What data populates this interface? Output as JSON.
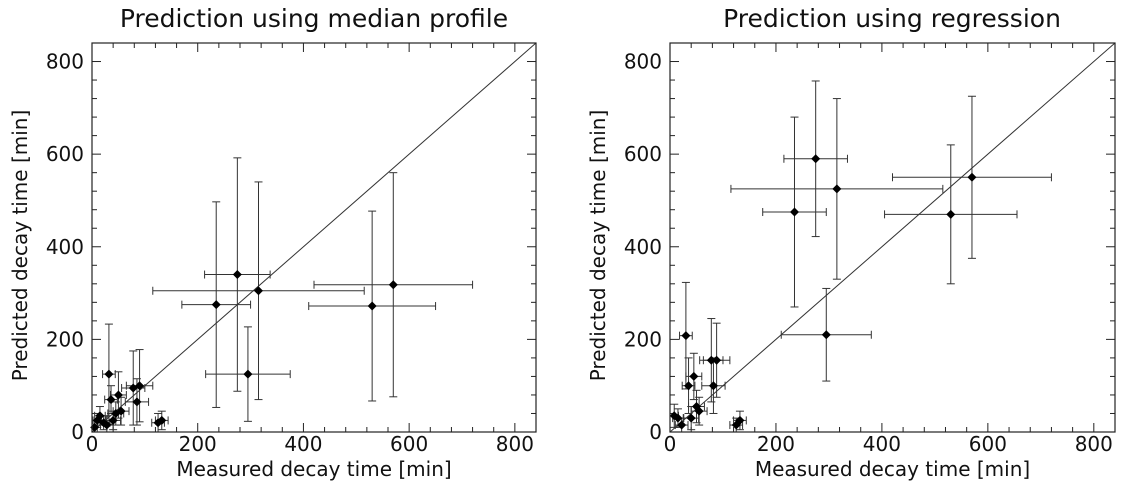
{
  "chart_data": [
    {
      "type": "scatter",
      "title": "Prediction using median profile",
      "xlabel": "Measured decay time [min]",
      "ylabel": "Predicted decay time [min]",
      "xlim": [
        0,
        840
      ],
      "ylim": [
        0,
        840
      ],
      "xticks": [
        "0",
        "200",
        "400",
        "600",
        "800"
      ],
      "yticks": [
        "0",
        "200",
        "400",
        "600",
        "800"
      ],
      "grid": false,
      "reference_line": "y = x",
      "points": [
        {
          "x": 5,
          "y": 10,
          "xerr": 5,
          "yerr": 15
        },
        {
          "x": 10,
          "y": 25,
          "xerr": 8,
          "yerr": 15
        },
        {
          "x": 15,
          "y": 35,
          "xerr": 10,
          "yerr": 20
        },
        {
          "x": 22,
          "y": 20,
          "xerr": 12,
          "yerr": 15
        },
        {
          "x": 28,
          "y": 15,
          "xerr": 12,
          "yerr": 20
        },
        {
          "x": 32,
          "y": 125,
          "xerr": 12,
          "yerr": 108
        },
        {
          "x": 36,
          "y": 70,
          "xerr": 12,
          "yerr": 30
        },
        {
          "x": 40,
          "y": 25,
          "xerr": 14,
          "yerr": 20
        },
        {
          "x": 45,
          "y": 40,
          "xerr": 15,
          "yerr": 25
        },
        {
          "x": 50,
          "y": 80,
          "xerr": 15,
          "yerr": 50
        },
        {
          "x": 55,
          "y": 45,
          "xerr": 15,
          "yerr": 30
        },
        {
          "x": 78,
          "y": 95,
          "xerr": 22,
          "yerr": 80
        },
        {
          "x": 85,
          "y": 65,
          "xerr": 22,
          "yerr": 50
        },
        {
          "x": 90,
          "y": 100,
          "xerr": 25,
          "yerr": 78
        },
        {
          "x": 125,
          "y": 20,
          "xerr": 12,
          "yerr": 20
        },
        {
          "x": 132,
          "y": 25,
          "xerr": 12,
          "yerr": 20
        },
        {
          "x": 235,
          "y": 275,
          "xerr": 65,
          "yerr": 222
        },
        {
          "x": 275,
          "y": 340,
          "xerr": 62,
          "yerr": 252
        },
        {
          "x": 295,
          "y": 125,
          "xerr": 80,
          "yerr": 102
        },
        {
          "x": 315,
          "y": 305,
          "xerr": 200,
          "yerr": 235
        },
        {
          "x": 530,
          "y": 272,
          "xerr": 120,
          "yerr": 205
        },
        {
          "x": 570,
          "y": 318,
          "xerr": 150,
          "yerr": 242
        }
      ]
    },
    {
      "type": "scatter",
      "title": "Prediction using regression",
      "xlabel": "Measured decay time [min]",
      "ylabel": "Predicted decay time [min]",
      "xlim": [
        0,
        840
      ],
      "ylim": [
        0,
        840
      ],
      "xticks": [
        "0",
        "200",
        "400",
        "600",
        "800"
      ],
      "yticks": [
        "0",
        "200",
        "400",
        "600",
        "800"
      ],
      "grid": false,
      "reference_line": "y = x",
      "points": [
        {
          "x": 8,
          "y": 35,
          "xerr": 8,
          "yerr": 25
        },
        {
          "x": 15,
          "y": 30,
          "xerr": 10,
          "yerr": 20
        },
        {
          "x": 22,
          "y": 15,
          "xerr": 12,
          "yerr": 15
        },
        {
          "x": 30,
          "y": 208,
          "xerr": 12,
          "yerr": 115
        },
        {
          "x": 35,
          "y": 100,
          "xerr": 12,
          "yerr": 60
        },
        {
          "x": 40,
          "y": 30,
          "xerr": 14,
          "yerr": 25
        },
        {
          "x": 45,
          "y": 120,
          "xerr": 15,
          "yerr": 50
        },
        {
          "x": 50,
          "y": 55,
          "xerr": 15,
          "yerr": 35
        },
        {
          "x": 55,
          "y": 45,
          "xerr": 15,
          "yerr": 30
        },
        {
          "x": 78,
          "y": 155,
          "xerr": 22,
          "yerr": 90
        },
        {
          "x": 82,
          "y": 100,
          "xerr": 22,
          "yerr": 60
        },
        {
          "x": 88,
          "y": 155,
          "xerr": 25,
          "yerr": 80
        },
        {
          "x": 125,
          "y": 15,
          "xerr": 12,
          "yerr": 15
        },
        {
          "x": 132,
          "y": 25,
          "xerr": 12,
          "yerr": 20
        },
        {
          "x": 235,
          "y": 475,
          "xerr": 60,
          "yerr": 205
        },
        {
          "x": 275,
          "y": 590,
          "xerr": 60,
          "yerr": 168
        },
        {
          "x": 295,
          "y": 210,
          "xerr": 85,
          "yerr": 100
        },
        {
          "x": 315,
          "y": 525,
          "xerr": 200,
          "yerr": 195
        },
        {
          "x": 530,
          "y": 470,
          "xerr": 125,
          "yerr": 150
        },
        {
          "x": 570,
          "y": 550,
          "xerr": 150,
          "yerr": 175
        }
      ]
    }
  ]
}
